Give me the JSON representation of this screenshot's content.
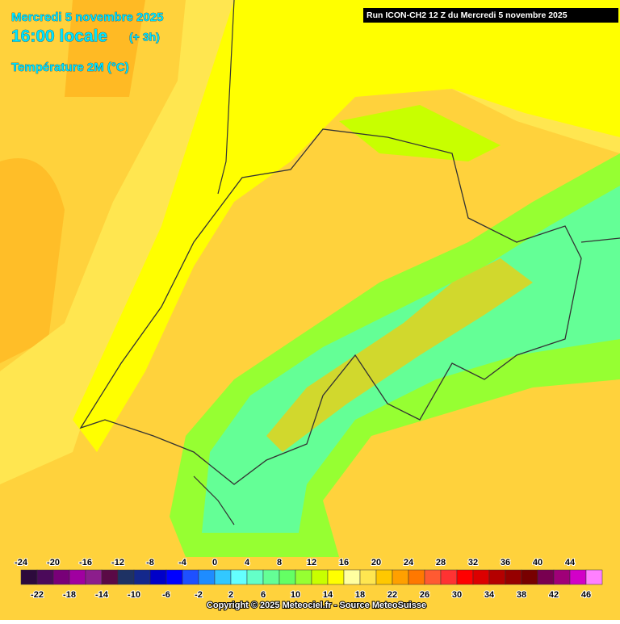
{
  "header": {
    "date": "Mercredi 5 novembre 2025",
    "time": "16:00 locale",
    "offset": "(+ 3h)",
    "parameter": "Température 2M (°C)",
    "run": "Run ICON-CH2 12 Z du Mercredi 5 novembre 2025"
  },
  "legend": {
    "values": [
      -24,
      -22,
      -20,
      -18,
      -16,
      -14,
      -12,
      -10,
      -8,
      -6,
      -4,
      -2,
      0,
      2,
      4,
      6,
      8,
      10,
      12,
      14,
      16,
      18,
      20,
      22,
      24,
      26,
      28,
      30,
      32,
      34,
      36,
      38,
      40,
      42,
      44,
      46
    ],
    "colors": [
      "#2d0a3c",
      "#4b0a5a",
      "#780078",
      "#a000a0",
      "#8c1e8c",
      "#5a0a46",
      "#1e3264",
      "#14288c",
      "#0000c8",
      "#0000ff",
      "#1e50ff",
      "#1e8cff",
      "#32c8ff",
      "#64ffff",
      "#64ffc8",
      "#64ff96",
      "#64ff64",
      "#96ff32",
      "#c8ff00",
      "#ffff00",
      "#ffffa0",
      "#ffe650",
      "#ffc800",
      "#ffa000",
      "#ff7800",
      "#ff5a32",
      "#ff3232",
      "#ff0000",
      "#dc0000",
      "#b40000",
      "#960000",
      "#780000",
      "#780050",
      "#a00078",
      "#d200c8",
      "#ff80ff"
    ]
  },
  "footer": {
    "copyright": "Copyright © 2025 Meteociel.fr - Source MeteoSuisse"
  }
}
